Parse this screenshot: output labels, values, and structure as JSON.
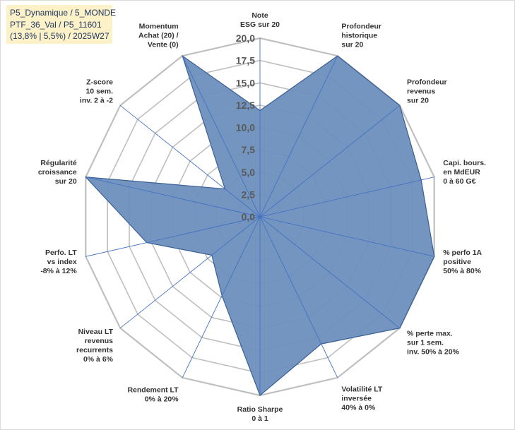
{
  "info_box": {
    "lines": [
      "P5_Dynamique / 5_MONDE",
      "PTF_36_Val / P5_11601",
      "(13,8% | 5,5%) / 2025W27"
    ]
  },
  "chart_data": {
    "type": "radar",
    "title": "",
    "axes": [
      [
        "Note",
        "ESG sur 20"
      ],
      [
        "Profondeur",
        "historique",
        "sur 20"
      ],
      [
        "Profondeur",
        "revenus",
        "sur 20"
      ],
      [
        "Capi. bours.",
        "en MdEUR",
        "0 à 60 G€"
      ],
      [
        "% perfo 1A",
        "positive",
        "50% à 80%"
      ],
      [
        "% perte max.",
        "sur 1 sem.",
        "inv. 50% à 20%"
      ],
      [
        "Volatilité LT",
        "inversée",
        "40% à 0%"
      ],
      [
        "Ratio Sharpe",
        "0 à 1"
      ],
      [
        "Rendement LT",
        "0% à 20%"
      ],
      [
        "Niveau LT",
        "revenus",
        "recurrents",
        "0% à 6%"
      ],
      [
        "Perfo. LT",
        "vs index",
        "-8% à 12%"
      ],
      [
        "Régularité",
        "croissance",
        "sur 20"
      ],
      [
        "Z-score",
        "10 sem.",
        "inv. 2 à -2"
      ],
      [
        "Momentum",
        "Achat (20) /",
        "Vente (0)"
      ]
    ],
    "series": [
      {
        "values": [
          11.9,
          20.0,
          20.0,
          18.5,
          20.0,
          20.0,
          15.8,
          20.0,
          9.8,
          6.9,
          13.0,
          20.0,
          5.0,
          20.0
        ]
      }
    ],
    "rlim": [
      0,
      20
    ],
    "ticks": [
      0,
      2.5,
      5,
      7.5,
      10,
      12.5,
      15,
      17.5,
      20
    ],
    "tick_labels": [
      "0,0",
      "2,5",
      "5,0",
      "7,5",
      "10,0",
      "12,5",
      "15,0",
      "17,5",
      "20,0"
    ],
    "grid": true,
    "colors": {
      "fill": "#6b8fbd",
      "fill_stroke": "#3a5f95",
      "grid": "#bfbfbf",
      "spoke": "#4472c4"
    }
  }
}
